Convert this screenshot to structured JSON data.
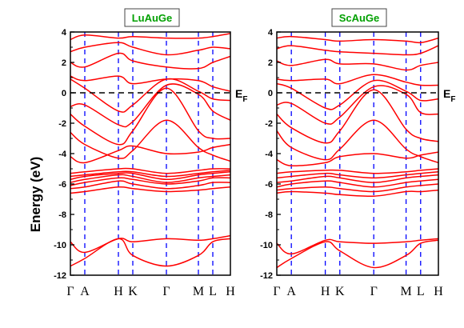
{
  "chart_data": [
    {
      "type": "line",
      "title": "LuAuGe",
      "ylabel": "Energy (eV)",
      "ylim": [
        -12,
        4
      ],
      "yticks": [
        -12,
        -10,
        -8,
        -6,
        -4,
        -2,
        0,
        2,
        4
      ],
      "fermi_level": 0,
      "fermi_label": "E",
      "fermi_label_sub": "F",
      "kpoints": [
        {
          "label": "Γ",
          "x": 0.0
        },
        {
          "label": "A",
          "x": 0.09
        },
        {
          "label": "H",
          "x": 0.3
        },
        {
          "label": "K",
          "x": 0.39
        },
        {
          "label": "Γ",
          "x": 0.6
        },
        {
          "label": "M",
          "x": 0.8
        },
        {
          "label": "L",
          "x": 0.89
        },
        {
          "label": "H",
          "x": 1.0
        }
      ],
      "band_color": "#ff0000",
      "band_x": [
        0,
        0.09,
        0.3,
        0.39,
        0.6,
        0.8,
        0.89,
        1.0
      ],
      "bands": [
        [
          -11.4,
          -10.9,
          -9.6,
          -10.7,
          -11.4,
          -10.7,
          -9.8,
          -9.6
        ],
        [
          -9.8,
          -10.5,
          -9.6,
          -9.8,
          -9.6,
          -9.7,
          -9.6,
          -9.4
        ],
        [
          -6.6,
          -6.5,
          -6.2,
          -6.3,
          -6.5,
          -6.4,
          -6.3,
          -6.2
        ],
        [
          -6.3,
          -6.2,
          -5.8,
          -6.0,
          -6.3,
          -6.1,
          -5.9,
          -5.9
        ],
        [
          -6.1,
          -5.9,
          -5.6,
          -5.7,
          -6.0,
          -5.8,
          -5.6,
          -5.6
        ],
        [
          -5.9,
          -5.7,
          -5.4,
          -5.5,
          -5.9,
          -5.6,
          -5.5,
          -5.4
        ],
        [
          -5.7,
          -5.5,
          -5.3,
          -5.3,
          -5.7,
          -5.4,
          -5.3,
          -5.2
        ],
        [
          -5.5,
          -5.4,
          -5.2,
          -5.2,
          -5.5,
          -5.3,
          -5.2,
          -5.1
        ],
        [
          -5.3,
          -5.2,
          -5.0,
          -5.0,
          -5.3,
          -5.1,
          -5.0,
          -5.0
        ],
        [
          -4.2,
          -4.6,
          -3.8,
          -3.5,
          -4.0,
          -3.9,
          -3.6,
          -3.4
        ],
        [
          -2.6,
          -3.4,
          -4.3,
          -3.8,
          -1.8,
          -3.6,
          -4.1,
          -4.5
        ],
        [
          -1.4,
          -2.2,
          -3.4,
          -2.5,
          0.3,
          -2.5,
          -3.0,
          -3.0
        ],
        [
          -0.9,
          -0.8,
          -2.1,
          -1.9,
          0.5,
          -0.1,
          -1.2,
          -1.8
        ],
        [
          0.9,
          0.3,
          -1.2,
          -0.8,
          0.9,
          0.1,
          -0.4,
          -0.5
        ],
        [
          1.1,
          0.8,
          1.1,
          0.6,
          0.9,
          0.8,
          0.4,
          0.1
        ],
        [
          2.0,
          1.7,
          2.6,
          2.1,
          1.7,
          1.6,
          2.0,
          2.4
        ],
        [
          2.7,
          3.0,
          3.3,
          3.0,
          2.5,
          2.8,
          3.0,
          2.9
        ],
        [
          3.5,
          3.8,
          3.6,
          3.7,
          3.6,
          3.6,
          3.7,
          3.9
        ]
      ]
    },
    {
      "type": "line",
      "title": "ScAuGe",
      "ylabel": "",
      "ylim": [
        -12,
        4
      ],
      "yticks": [
        -12,
        -10,
        -8,
        -6,
        -4,
        -2,
        0,
        2,
        4
      ],
      "fermi_level": 0,
      "fermi_label": "E",
      "fermi_label_sub": "F",
      "kpoints": [
        {
          "label": "Γ",
          "x": 0.0
        },
        {
          "label": "A",
          "x": 0.09
        },
        {
          "label": "H",
          "x": 0.3
        },
        {
          "label": "K",
          "x": 0.39
        },
        {
          "label": "Γ",
          "x": 0.6
        },
        {
          "label": "M",
          "x": 0.8
        },
        {
          "label": "L",
          "x": 0.89
        },
        {
          "label": "H",
          "x": 1.0
        }
      ],
      "band_color": "#ff0000",
      "band_x": [
        0,
        0.09,
        0.3,
        0.39,
        0.6,
        0.8,
        0.89,
        1.0
      ],
      "bands": [
        [
          -11.5,
          -10.9,
          -9.8,
          -10.4,
          -11.5,
          -10.7,
          -9.9,
          -9.7
        ],
        [
          -9.9,
          -10.6,
          -9.7,
          -9.8,
          -9.9,
          -9.8,
          -9.7,
          -9.6
        ],
        [
          -6.6,
          -6.5,
          -6.6,
          -6.7,
          -6.8,
          -6.5,
          -6.5,
          -6.4
        ],
        [
          -6.4,
          -6.3,
          -6.2,
          -6.3,
          -6.5,
          -6.2,
          -6.1,
          -6.0
        ],
        [
          -6.2,
          -6.0,
          -5.8,
          -5.9,
          -6.2,
          -5.9,
          -5.8,
          -5.7
        ],
        [
          -5.9,
          -5.8,
          -5.5,
          -5.6,
          -5.9,
          -5.6,
          -5.5,
          -5.4
        ],
        [
          -5.6,
          -5.5,
          -5.3,
          -5.4,
          -5.6,
          -5.4,
          -5.3,
          -5.2
        ],
        [
          -5.3,
          -5.2,
          -5.1,
          -5.1,
          -5.3,
          -5.2,
          -5.1,
          -5.0
        ],
        [
          -4.4,
          -4.8,
          -4.6,
          -4.2,
          -4.0,
          -4.3,
          -4.1,
          -3.9
        ],
        [
          -2.5,
          -3.6,
          -4.4,
          -3.7,
          -1.8,
          -3.7,
          -4.2,
          -4.6
        ],
        [
          -1.4,
          -2.3,
          -3.3,
          -2.5,
          0.2,
          -2.4,
          -3.0,
          -3.2
        ],
        [
          -0.8,
          -0.7,
          -2.0,
          -1.6,
          0.4,
          -0.1,
          -1.3,
          -1.4
        ],
        [
          0.6,
          0.3,
          -1.0,
          -0.8,
          0.8,
          0.1,
          -0.5,
          -0.4
        ],
        [
          0.9,
          0.8,
          0.9,
          0.6,
          1.2,
          0.7,
          0.5,
          0.5
        ],
        [
          2.1,
          1.8,
          2.2,
          1.9,
          1.9,
          1.5,
          1.8,
          2.0
        ],
        [
          2.9,
          3.1,
          2.8,
          2.7,
          2.6,
          2.5,
          2.6,
          3.1
        ],
        [
          3.6,
          3.7,
          3.5,
          3.4,
          3.5,
          3.4,
          3.3,
          3.6
        ]
      ]
    }
  ]
}
